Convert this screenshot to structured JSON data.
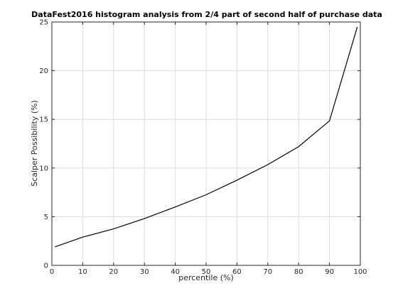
{
  "chart_data": {
    "type": "line",
    "title": "DataFest2016 histogram analysis from 2/4 part of second half of purchase data",
    "xlabel": "percentile (%)",
    "ylabel": "Scalper Possibility (%)",
    "xlim": [
      0,
      100
    ],
    "ylim": [
      0,
      25
    ],
    "xticks": [
      0,
      10,
      20,
      30,
      40,
      50,
      60,
      70,
      80,
      90,
      100
    ],
    "yticks": [
      0,
      5,
      10,
      15,
      20,
      25
    ],
    "grid": true,
    "line_color": "#000000",
    "series": [
      {
        "x": [
          1,
          10,
          20,
          30,
          40,
          50,
          60,
          70,
          80,
          90,
          99
        ],
        "y": [
          1.9,
          2.9,
          3.75,
          4.8,
          6.0,
          7.25,
          8.75,
          10.35,
          12.2,
          14.85,
          24.5
        ]
      }
    ]
  }
}
